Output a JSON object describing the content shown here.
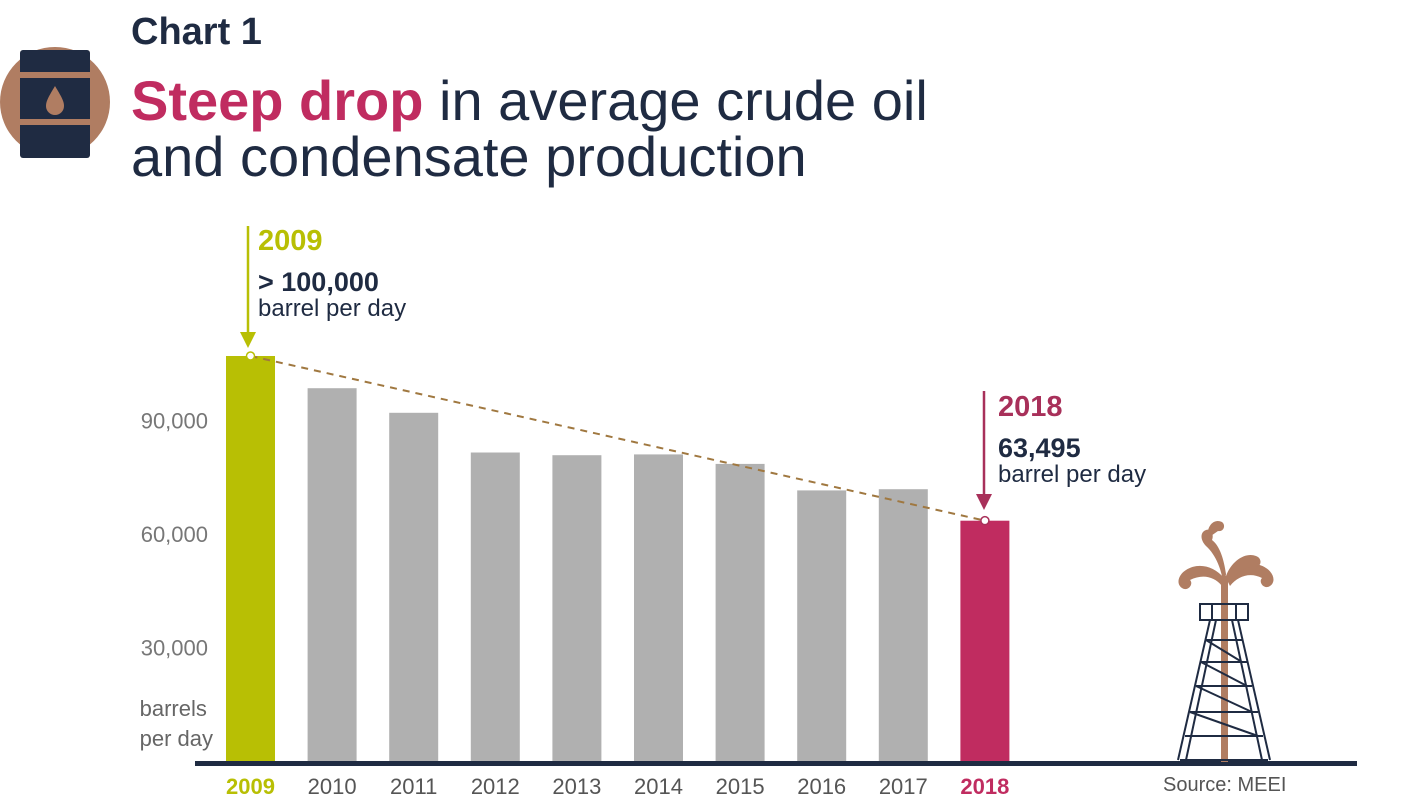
{
  "header": {
    "chart_number": "Chart 1",
    "title_highlight": "Steep drop",
    "title_rest_line1": " in average crude oil",
    "title_line2": "and condensate production"
  },
  "icons": {
    "barrel": "oil-barrel-icon",
    "rig": "oil-rig-gusher-icon"
  },
  "colors": {
    "navy": "#1f2b42",
    "lime": "#b8bf04",
    "magenta": "#c02c60",
    "gray": "#b0b0b0",
    "copper": "#b07d62",
    "wine": "#a8305a"
  },
  "annotations": {
    "start": {
      "year": "2009",
      "value": "> 100,000",
      "unit": "barrel per day"
    },
    "end": {
      "year": "2018",
      "value": "63,495",
      "unit": "barrel per day"
    }
  },
  "source": "Source: MEEI",
  "chart_data": {
    "type": "bar",
    "categories": [
      "2009",
      "2010",
      "2011",
      "2012",
      "2013",
      "2014",
      "2015",
      "2016",
      "2017",
      "2018"
    ],
    "values": [
      107000,
      98500,
      92000,
      81500,
      80800,
      81000,
      78500,
      71500,
      71800,
      63495
    ],
    "highlight": {
      "2009": "#b8bf04",
      "2018": "#c02c60"
    },
    "trend_line": {
      "from": "2009",
      "to": "2018",
      "style": "dashed"
    },
    "ylabel": "barrels per day",
    "yticks": [
      30000,
      60000,
      90000
    ],
    "ytick_labels": [
      "30,000",
      "60,000",
      "90,000"
    ],
    "ylim": [
      0,
      107000
    ],
    "grid": false,
    "legend": "none"
  }
}
